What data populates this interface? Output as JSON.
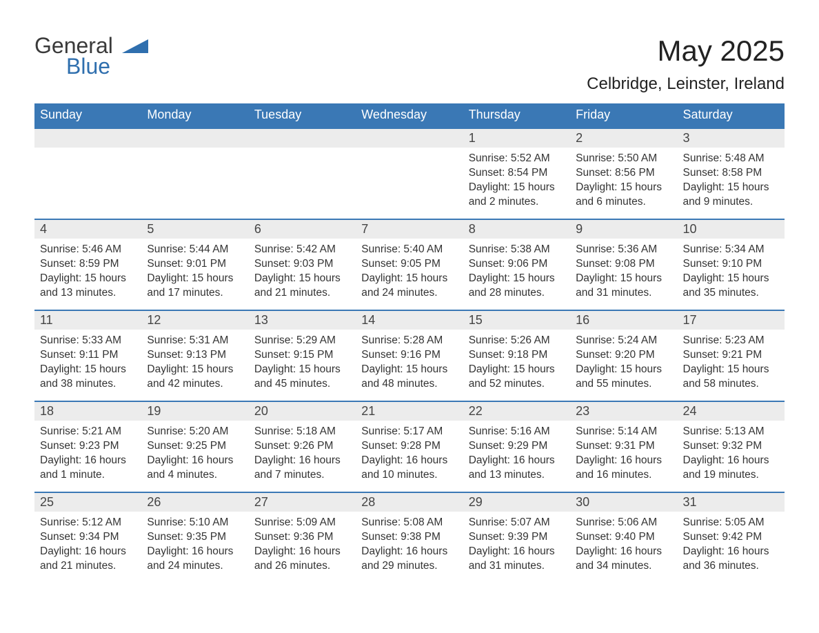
{
  "logo": {
    "part1": "General",
    "part2": "Blue"
  },
  "title": "May 2025",
  "location": "Celbridge, Leinster, Ireland",
  "colors": {
    "header_bg": "#3a78b5",
    "header_text": "#ffffff",
    "daynum_bg": "#ececec",
    "body_text": "#333333",
    "logo_gray": "#3a3a3a",
    "logo_blue": "#2f6fae",
    "page_bg": "#ffffff"
  },
  "typography": {
    "title_fontsize": 42,
    "location_fontsize": 24,
    "dayhead_fontsize": 18,
    "daynum_fontsize": 18,
    "info_fontsize": 15.5,
    "logo_fontsize": 32
  },
  "layout": {
    "columns": 7,
    "rows": 5,
    "first_day_column_index": 4
  },
  "day_names": [
    "Sunday",
    "Monday",
    "Tuesday",
    "Wednesday",
    "Thursday",
    "Friday",
    "Saturday"
  ],
  "weeks": [
    [
      {
        "empty": true
      },
      {
        "empty": true
      },
      {
        "empty": true
      },
      {
        "empty": true
      },
      {
        "day": "1",
        "sunrise": "Sunrise: 5:52 AM",
        "sunset": "Sunset: 8:54 PM",
        "daylight": "Daylight: 15 hours and 2 minutes."
      },
      {
        "day": "2",
        "sunrise": "Sunrise: 5:50 AM",
        "sunset": "Sunset: 8:56 PM",
        "daylight": "Daylight: 15 hours and 6 minutes."
      },
      {
        "day": "3",
        "sunrise": "Sunrise: 5:48 AM",
        "sunset": "Sunset: 8:58 PM",
        "daylight": "Daylight: 15 hours and 9 minutes."
      }
    ],
    [
      {
        "day": "4",
        "sunrise": "Sunrise: 5:46 AM",
        "sunset": "Sunset: 8:59 PM",
        "daylight": "Daylight: 15 hours and 13 minutes."
      },
      {
        "day": "5",
        "sunrise": "Sunrise: 5:44 AM",
        "sunset": "Sunset: 9:01 PM",
        "daylight": "Daylight: 15 hours and 17 minutes."
      },
      {
        "day": "6",
        "sunrise": "Sunrise: 5:42 AM",
        "sunset": "Sunset: 9:03 PM",
        "daylight": "Daylight: 15 hours and 21 minutes."
      },
      {
        "day": "7",
        "sunrise": "Sunrise: 5:40 AM",
        "sunset": "Sunset: 9:05 PM",
        "daylight": "Daylight: 15 hours and 24 minutes."
      },
      {
        "day": "8",
        "sunrise": "Sunrise: 5:38 AM",
        "sunset": "Sunset: 9:06 PM",
        "daylight": "Daylight: 15 hours and 28 minutes."
      },
      {
        "day": "9",
        "sunrise": "Sunrise: 5:36 AM",
        "sunset": "Sunset: 9:08 PM",
        "daylight": "Daylight: 15 hours and 31 minutes."
      },
      {
        "day": "10",
        "sunrise": "Sunrise: 5:34 AM",
        "sunset": "Sunset: 9:10 PM",
        "daylight": "Daylight: 15 hours and 35 minutes."
      }
    ],
    [
      {
        "day": "11",
        "sunrise": "Sunrise: 5:33 AM",
        "sunset": "Sunset: 9:11 PM",
        "daylight": "Daylight: 15 hours and 38 minutes."
      },
      {
        "day": "12",
        "sunrise": "Sunrise: 5:31 AM",
        "sunset": "Sunset: 9:13 PM",
        "daylight": "Daylight: 15 hours and 42 minutes."
      },
      {
        "day": "13",
        "sunrise": "Sunrise: 5:29 AM",
        "sunset": "Sunset: 9:15 PM",
        "daylight": "Daylight: 15 hours and 45 minutes."
      },
      {
        "day": "14",
        "sunrise": "Sunrise: 5:28 AM",
        "sunset": "Sunset: 9:16 PM",
        "daylight": "Daylight: 15 hours and 48 minutes."
      },
      {
        "day": "15",
        "sunrise": "Sunrise: 5:26 AM",
        "sunset": "Sunset: 9:18 PM",
        "daylight": "Daylight: 15 hours and 52 minutes."
      },
      {
        "day": "16",
        "sunrise": "Sunrise: 5:24 AM",
        "sunset": "Sunset: 9:20 PM",
        "daylight": "Daylight: 15 hours and 55 minutes."
      },
      {
        "day": "17",
        "sunrise": "Sunrise: 5:23 AM",
        "sunset": "Sunset: 9:21 PM",
        "daylight": "Daylight: 15 hours and 58 minutes."
      }
    ],
    [
      {
        "day": "18",
        "sunrise": "Sunrise: 5:21 AM",
        "sunset": "Sunset: 9:23 PM",
        "daylight": "Daylight: 16 hours and 1 minute."
      },
      {
        "day": "19",
        "sunrise": "Sunrise: 5:20 AM",
        "sunset": "Sunset: 9:25 PM",
        "daylight": "Daylight: 16 hours and 4 minutes."
      },
      {
        "day": "20",
        "sunrise": "Sunrise: 5:18 AM",
        "sunset": "Sunset: 9:26 PM",
        "daylight": "Daylight: 16 hours and 7 minutes."
      },
      {
        "day": "21",
        "sunrise": "Sunrise: 5:17 AM",
        "sunset": "Sunset: 9:28 PM",
        "daylight": "Daylight: 16 hours and 10 minutes."
      },
      {
        "day": "22",
        "sunrise": "Sunrise: 5:16 AM",
        "sunset": "Sunset: 9:29 PM",
        "daylight": "Daylight: 16 hours and 13 minutes."
      },
      {
        "day": "23",
        "sunrise": "Sunrise: 5:14 AM",
        "sunset": "Sunset: 9:31 PM",
        "daylight": "Daylight: 16 hours and 16 minutes."
      },
      {
        "day": "24",
        "sunrise": "Sunrise: 5:13 AM",
        "sunset": "Sunset: 9:32 PM",
        "daylight": "Daylight: 16 hours and 19 minutes."
      }
    ],
    [
      {
        "day": "25",
        "sunrise": "Sunrise: 5:12 AM",
        "sunset": "Sunset: 9:34 PM",
        "daylight": "Daylight: 16 hours and 21 minutes."
      },
      {
        "day": "26",
        "sunrise": "Sunrise: 5:10 AM",
        "sunset": "Sunset: 9:35 PM",
        "daylight": "Daylight: 16 hours and 24 minutes."
      },
      {
        "day": "27",
        "sunrise": "Sunrise: 5:09 AM",
        "sunset": "Sunset: 9:36 PM",
        "daylight": "Daylight: 16 hours and 26 minutes."
      },
      {
        "day": "28",
        "sunrise": "Sunrise: 5:08 AM",
        "sunset": "Sunset: 9:38 PM",
        "daylight": "Daylight: 16 hours and 29 minutes."
      },
      {
        "day": "29",
        "sunrise": "Sunrise: 5:07 AM",
        "sunset": "Sunset: 9:39 PM",
        "daylight": "Daylight: 16 hours and 31 minutes."
      },
      {
        "day": "30",
        "sunrise": "Sunrise: 5:06 AM",
        "sunset": "Sunset: 9:40 PM",
        "daylight": "Daylight: 16 hours and 34 minutes."
      },
      {
        "day": "31",
        "sunrise": "Sunrise: 5:05 AM",
        "sunset": "Sunset: 9:42 PM",
        "daylight": "Daylight: 16 hours and 36 minutes."
      }
    ]
  ]
}
